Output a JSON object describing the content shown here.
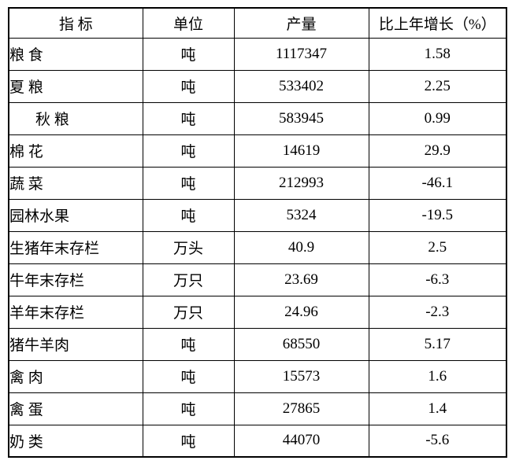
{
  "table": {
    "columns": [
      {
        "label": "指 标"
      },
      {
        "label": "单位"
      },
      {
        "label": "产量"
      },
      {
        "label": "比上年增长（%）"
      }
    ],
    "rows": [
      {
        "indicator": "粮 食",
        "unit": "吨",
        "output": "1117347",
        "growth": "1.58",
        "indent": false
      },
      {
        "indicator": "夏 粮",
        "unit": "吨",
        "output": "533402",
        "growth": "2.25",
        "indent": false
      },
      {
        "indicator": "秋 粮",
        "unit": "吨",
        "output": "583945",
        "growth": "0.99",
        "indent": true
      },
      {
        "indicator": "棉 花",
        "unit": "吨",
        "output": "14619",
        "growth": "29.9",
        "indent": false
      },
      {
        "indicator": "蔬 菜",
        "unit": "吨",
        "output": "212993",
        "growth": "-46.1",
        "indent": false
      },
      {
        "indicator": "园林水果",
        "unit": "吨",
        "output": "5324",
        "growth": "-19.5",
        "indent": false
      },
      {
        "indicator": "生猪年末存栏",
        "unit": "万头",
        "output": "40.9",
        "growth": "2.5",
        "indent": false
      },
      {
        "indicator": "牛年末存栏",
        "unit": "万只",
        "output": "23.69",
        "growth": "-6.3",
        "indent": false
      },
      {
        "indicator": "羊年末存栏",
        "unit": "万只",
        "output": "24.96",
        "growth": "-2.3",
        "indent": false
      },
      {
        "indicator": "猪牛羊肉",
        "unit": "吨",
        "output": "68550",
        "growth": "5.17",
        "indent": false
      },
      {
        "indicator": "禽 肉",
        "unit": "吨",
        "output": "15573",
        "growth": "1.6",
        "indent": false
      },
      {
        "indicator": "禽 蛋",
        "unit": "吨",
        "output": "27865",
        "growth": "1.4",
        "indent": false
      },
      {
        "indicator": "奶 类",
        "unit": "吨",
        "output": "44070",
        "growth": "-5.6",
        "indent": false
      }
    ]
  },
  "chart_data": {
    "type": "table",
    "title": "",
    "columns": [
      "指 标",
      "单位",
      "产量",
      "比上年增长（%）"
    ],
    "rows": [
      [
        "粮 食",
        "吨",
        1117347,
        1.58
      ],
      [
        "夏 粮",
        "吨",
        533402,
        2.25
      ],
      [
        "秋 粮",
        "吨",
        583945,
        0.99
      ],
      [
        "棉 花",
        "吨",
        14619,
        29.9
      ],
      [
        "蔬 菜",
        "吨",
        212993,
        -46.1
      ],
      [
        "园林水果",
        "吨",
        5324,
        -19.5
      ],
      [
        "生猪年末存栏",
        "万头",
        40.9,
        2.5
      ],
      [
        "牛年末存栏",
        "万只",
        23.69,
        -6.3
      ],
      [
        "羊年末存栏",
        "万只",
        24.96,
        -2.3
      ],
      [
        "猪牛羊肉",
        "吨",
        68550,
        5.17
      ],
      [
        "禽 肉",
        "吨",
        15573,
        1.6
      ],
      [
        "禽 蛋",
        "吨",
        27865,
        1.4
      ],
      [
        "奶 类",
        "吨",
        44070,
        -5.6
      ]
    ]
  }
}
